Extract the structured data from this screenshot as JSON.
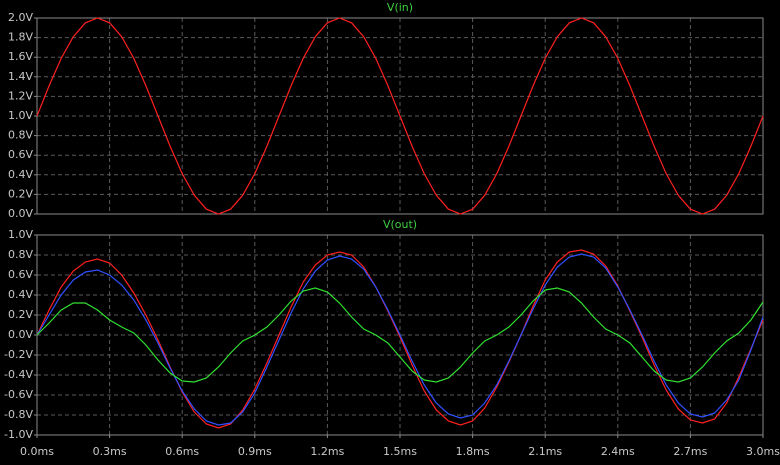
{
  "chart_data": [
    {
      "type": "line",
      "title": "V(in)",
      "x": [
        0,
        0.05,
        0.1,
        0.15,
        0.2,
        0.25,
        0.3,
        0.35,
        0.4,
        0.45,
        0.5,
        0.55,
        0.6,
        0.65,
        0.7,
        0.75,
        0.8,
        0.85,
        0.9,
        0.95,
        1,
        1.05,
        1.1,
        1.15,
        1.2,
        1.25,
        1.3,
        1.35,
        1.4,
        1.45,
        1.5,
        1.55,
        1.6,
        1.65,
        1.7,
        1.75,
        1.8,
        1.85,
        1.9,
        1.95,
        2,
        2.05,
        2.1,
        2.15,
        2.2,
        2.25,
        2.3,
        2.35,
        2.4,
        2.45,
        2.5,
        2.55,
        2.6,
        2.65,
        2.7,
        2.75,
        2.8,
        2.85,
        2.9,
        2.95,
        3
      ],
      "series": [
        {
          "color": "#ff2020",
          "values": [
            1,
            1.309,
            1.588,
            1.809,
            1.951,
            2,
            1.951,
            1.809,
            1.588,
            1.309,
            1,
            0.691,
            0.412,
            0.191,
            0.049,
            0,
            0.049,
            0.191,
            0.412,
            0.691,
            1,
            1.309,
            1.588,
            1.809,
            1.951,
            2,
            1.951,
            1.809,
            1.588,
            1.309,
            1,
            0.691,
            0.412,
            0.191,
            0.049,
            0,
            0.049,
            0.191,
            0.412,
            0.691,
            1,
            1.309,
            1.588,
            1.809,
            1.951,
            2,
            1.951,
            1.809,
            1.588,
            1.309,
            1,
            0.691,
            0.412,
            0.191,
            0.049,
            0,
            0.049,
            0.191,
            0.412,
            0.691,
            1
          ]
        }
      ],
      "xlim": [
        0,
        3
      ],
      "xticks": [
        0,
        0.3,
        0.6,
        0.9,
        1.2,
        1.5,
        1.8,
        2.1,
        2.4,
        2.7,
        3
      ],
      "ylim": [
        0,
        2
      ],
      "yticks": [
        {
          "value": 0,
          "label": "0.0V"
        },
        {
          "value": 0.2,
          "label": "0.2V"
        },
        {
          "value": 0.4,
          "label": "0.4V"
        },
        {
          "value": 0.6,
          "label": "0.6V"
        },
        {
          "value": 0.8,
          "label": "0.8V"
        },
        {
          "value": 1,
          "label": "1.0V"
        },
        {
          "value": 1.2,
          "label": "1.2V"
        },
        {
          "value": 1.4,
          "label": "1.4V"
        },
        {
          "value": 1.6,
          "label": "1.6V"
        },
        {
          "value": 1.8,
          "label": "1.8V"
        },
        {
          "value": 2,
          "label": "2.0V"
        }
      ],
      "grid": true
    },
    {
      "type": "line",
      "title": "V(out)",
      "x": [
        0,
        0.05,
        0.1,
        0.15,
        0.2,
        0.25,
        0.3,
        0.35,
        0.4,
        0.45,
        0.5,
        0.55,
        0.6,
        0.65,
        0.7,
        0.75,
        0.8,
        0.85,
        0.9,
        0.95,
        1,
        1.05,
        1.1,
        1.15,
        1.2,
        1.25,
        1.3,
        1.35,
        1.4,
        1.45,
        1.5,
        1.55,
        1.6,
        1.65,
        1.7,
        1.75,
        1.8,
        1.85,
        1.9,
        1.95,
        2,
        2.05,
        2.1,
        2.15,
        2.2,
        2.25,
        2.3,
        2.35,
        2.4,
        2.45,
        2.5,
        2.55,
        2.6,
        2.65,
        2.7,
        2.75,
        2.8,
        2.85,
        2.9,
        2.95,
        3
      ],
      "series": [
        {
          "color": "#ff2020",
          "values": [
            0,
            0.25,
            0.48,
            0.64,
            0.73,
            0.76,
            0.72,
            0.6,
            0.42,
            0.2,
            -0.05,
            -0.32,
            -0.57,
            -0.77,
            -0.89,
            -0.93,
            -0.89,
            -0.75,
            -0.54,
            -0.28,
            0,
            0.28,
            0.53,
            0.7,
            0.8,
            0.83,
            0.8,
            0.68,
            0.48,
            0.24,
            -0.02,
            -0.3,
            -0.56,
            -0.75,
            -0.86,
            -0.9,
            -0.86,
            -0.73,
            -0.52,
            -0.27,
            0,
            0.29,
            0.55,
            0.73,
            0.83,
            0.85,
            0.81,
            0.69,
            0.49,
            0.24,
            -0.02,
            -0.3,
            -0.55,
            -0.74,
            -0.85,
            -0.88,
            -0.84,
            -0.68,
            -0.42,
            -0.14,
            0.15
          ]
        },
        {
          "color": "#3050ff",
          "values": [
            0,
            0.2,
            0.4,
            0.55,
            0.63,
            0.65,
            0.6,
            0.5,
            0.35,
            0.15,
            -0.08,
            -0.33,
            -0.56,
            -0.74,
            -0.86,
            -0.9,
            -0.88,
            -0.77,
            -0.58,
            -0.32,
            -0.05,
            0.22,
            0.46,
            0.64,
            0.75,
            0.79,
            0.76,
            0.66,
            0.48,
            0.25,
            0,
            -0.26,
            -0.5,
            -0.68,
            -0.79,
            -0.83,
            -0.8,
            -0.68,
            -0.5,
            -0.26,
            0,
            0.26,
            0.5,
            0.68,
            0.78,
            0.81,
            0.78,
            0.67,
            0.48,
            0.25,
            0,
            -0.26,
            -0.5,
            -0.68,
            -0.79,
            -0.82,
            -0.78,
            -0.65,
            -0.45,
            -0.15,
            0.18
          ]
        },
        {
          "color": "#30e030",
          "values": [
            0,
            0.12,
            0.25,
            0.32,
            0.32,
            0.25,
            0.15,
            0.08,
            0.02,
            -0.1,
            -0.25,
            -0.38,
            -0.46,
            -0.47,
            -0.43,
            -0.32,
            -0.18,
            -0.06,
            0,
            0.08,
            0.2,
            0.34,
            0.44,
            0.47,
            0.43,
            0.32,
            0.18,
            0.06,
            0,
            -0.08,
            -0.22,
            -0.36,
            -0.45,
            -0.47,
            -0.43,
            -0.32,
            -0.18,
            -0.06,
            0,
            0.08,
            0.2,
            0.34,
            0.45,
            0.47,
            0.43,
            0.32,
            0.18,
            0.06,
            0,
            -0.08,
            -0.22,
            -0.36,
            -0.45,
            -0.47,
            -0.43,
            -0.32,
            -0.18,
            -0.06,
            0.02,
            0.15,
            0.33
          ]
        }
      ],
      "xlim": [
        0,
        3
      ],
      "xticks": [
        {
          "value": 0,
          "label": "0.0ms"
        },
        {
          "value": 0.3,
          "label": "0.3ms"
        },
        {
          "value": 0.6,
          "label": "0.6ms"
        },
        {
          "value": 0.9,
          "label": "0.9ms"
        },
        {
          "value": 1.2,
          "label": "1.2ms"
        },
        {
          "value": 1.5,
          "label": "1.5ms"
        },
        {
          "value": 1.8,
          "label": "1.8ms"
        },
        {
          "value": 2.1,
          "label": "2.1ms"
        },
        {
          "value": 2.4,
          "label": "2.4ms"
        },
        {
          "value": 2.7,
          "label": "2.7ms"
        },
        {
          "value": 3,
          "label": "3.0ms"
        }
      ],
      "ylim": [
        -1,
        1
      ],
      "yticks": [
        {
          "value": -1,
          "label": "-1.0V"
        },
        {
          "value": -0.8,
          "label": "-0.8V"
        },
        {
          "value": -0.6,
          "label": "-0.6V"
        },
        {
          "value": -0.4,
          "label": "-0.4V"
        },
        {
          "value": -0.2,
          "label": "-0.2V"
        },
        {
          "value": 0,
          "label": "0.0V"
        },
        {
          "value": 0.2,
          "label": "0.2V"
        },
        {
          "value": 0.4,
          "label": "0.4V"
        },
        {
          "value": 0.6,
          "label": "0.6V"
        },
        {
          "value": 0.8,
          "label": "0.8V"
        },
        {
          "value": 1,
          "label": "1.0V"
        }
      ],
      "grid": true
    }
  ]
}
